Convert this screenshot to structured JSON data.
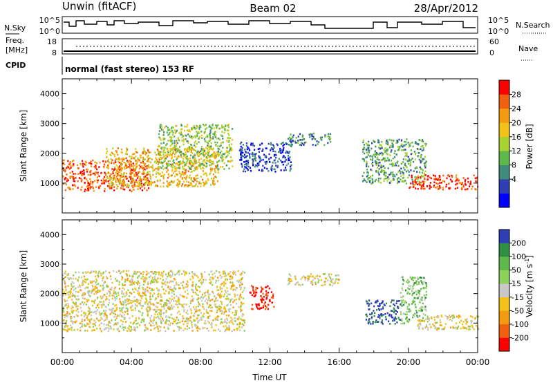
{
  "header": {
    "site": "Unwin (fitACF)",
    "beam": "Beam 02",
    "date": "28/Apr/2012"
  },
  "top_panel": {
    "nsky_label": "N.Sky",
    "nsearch_label": "N.Search",
    "noise_ticks": [
      "10^5",
      "10^0"
    ],
    "freq_label_1": "Freq.",
    "freq_label_2": "[MHz]",
    "freq_ticks": [
      "18",
      "8"
    ],
    "nave_ticks": [
      "60",
      "0"
    ],
    "nave_label": "Nave",
    "cpid_label": "CPID",
    "cpid_text": "normal (fast stereo) 153 RF"
  },
  "chart_data": [
    {
      "type": "heatmap",
      "title": "",
      "xlabel": "",
      "ylabel": "Slant Range [km]",
      "ylim": [
        0,
        4500
      ],
      "yticks": [
        1000,
        2000,
        3000,
        4000
      ],
      "xticks": [
        0,
        4,
        8,
        12,
        16,
        20,
        24
      ],
      "colorbar": {
        "label": "Power [dB]",
        "ticks": [
          "28",
          "24",
          "20",
          "16",
          "12",
          "8",
          "4"
        ],
        "colors": [
          "#0000ff",
          "#2e3fb4",
          "#3f8a7a",
          "#5fb84a",
          "#a8d230",
          "#f2c218",
          "#f39a10",
          "#f06010",
          "#ff0000"
        ]
      },
      "regions": [
        {
          "x": [
            0.0,
            5.0
          ],
          "y": [
            750,
            1800
          ],
          "level": 0.85
        },
        {
          "x": [
            2.5,
            9.0
          ],
          "y": [
            900,
            2200
          ],
          "level": 0.65
        },
        {
          "x": [
            5.5,
            9.8
          ],
          "y": [
            1500,
            3000
          ],
          "level": 0.45
        },
        {
          "x": [
            10.2,
            13.2
          ],
          "y": [
            1400,
            2400
          ],
          "level": 0.15
        },
        {
          "x": [
            13.0,
            15.5
          ],
          "y": [
            2300,
            2700
          ],
          "level": 0.3
        },
        {
          "x": [
            17.3,
            21.0
          ],
          "y": [
            1000,
            2500
          ],
          "level": 0.35
        },
        {
          "x": [
            20.0,
            24.0
          ],
          "y": [
            800,
            1300
          ],
          "level": 0.9
        }
      ]
    },
    {
      "type": "heatmap",
      "title": "",
      "xlabel": "Time UT",
      "ylabel": "Slant Range [km]",
      "ylim": [
        0,
        4500
      ],
      "yticks": [
        1000,
        2000,
        3000,
        4000
      ],
      "xticks": [
        0,
        4,
        8,
        12,
        16,
        20,
        24
      ],
      "xtick_labels": [
        "00:00",
        "04:00",
        "08:00",
        "12:00",
        "16:00",
        "20:00",
        "00:00"
      ],
      "colorbar": {
        "label": "Velocity [m s",
        "label_sup": "-1",
        "label_end": "]",
        "ticks": [
          "200",
          "100",
          "50",
          "15",
          "-15",
          "-50",
          "-100",
          "-200"
        ],
        "colors": [
          "#ff0000",
          "#f06010",
          "#f39a10",
          "#f2c218",
          "#c8c8c8",
          "#8ad25a",
          "#5fb84a",
          "#2e8f3e",
          "#2e3fb4"
        ]
      },
      "regions": [
        {
          "x": [
            0.0,
            10.5
          ],
          "y": [
            750,
            2800
          ],
          "level": 0.45
        },
        {
          "x": [
            10.8,
            12.2
          ],
          "y": [
            1500,
            2300
          ],
          "level": 0.05
        },
        {
          "x": [
            13.0,
            16.0
          ],
          "y": [
            2300,
            2700
          ],
          "level": 0.45
        },
        {
          "x": [
            17.5,
            19.5
          ],
          "y": [
            1000,
            1800
          ],
          "level": 0.95
        },
        {
          "x": [
            19.5,
            21.0
          ],
          "y": [
            1000,
            2600
          ],
          "level": 0.65
        },
        {
          "x": [
            20.5,
            24.0
          ],
          "y": [
            800,
            1300
          ],
          "level": 0.45
        }
      ]
    }
  ]
}
